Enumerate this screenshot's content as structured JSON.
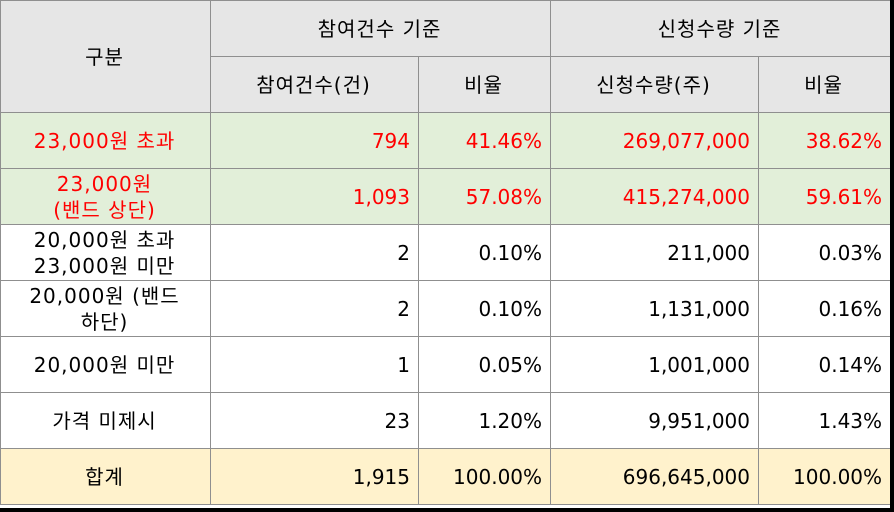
{
  "header": {
    "category": "구분",
    "group_participation": "참여건수 기준",
    "group_quantity": "신청수량 기준",
    "col_count": "참여건수(건)",
    "col_count_ratio": "비율",
    "col_qty": "신청수량(주)",
    "col_qty_ratio": "비율"
  },
  "rows": [
    {
      "category": "23,000원 초과",
      "count": "794",
      "count_ratio": "41.46%",
      "qty": "269,077,000",
      "qty_ratio": "38.62%"
    },
    {
      "category_line1": "23,000원",
      "category_line2": "(밴드 상단)",
      "count": "1,093",
      "count_ratio": "57.08%",
      "qty": "415,274,000",
      "qty_ratio": "59.61%"
    },
    {
      "category_line1": "20,000원 초과",
      "category_line2": "23,000원 미만",
      "count": "2",
      "count_ratio": "0.10%",
      "qty": "211,000",
      "qty_ratio": "0.03%"
    },
    {
      "category_line1": "20,000원 (밴드",
      "category_line2": "하단)",
      "count": "2",
      "count_ratio": "0.10%",
      "qty": "1,131,000",
      "qty_ratio": "0.16%"
    },
    {
      "category": "20,000원 미만",
      "count": "1",
      "count_ratio": "0.05%",
      "qty": "1,001,000",
      "qty_ratio": "0.14%"
    },
    {
      "category": "가격 미제시",
      "count": "23",
      "count_ratio": "1.20%",
      "qty": "9,951,000",
      "qty_ratio": "1.43%"
    }
  ],
  "total": {
    "category": "합계",
    "count": "1,915",
    "count_ratio": "100.00%",
    "qty": "696,645,000",
    "qty_ratio": "100.00%"
  },
  "colors": {
    "header_bg": "#e6e6e6",
    "highlight_bg": "#e2efd9",
    "highlight_text": "#ff0000",
    "total_bg": "#fff2cc"
  }
}
